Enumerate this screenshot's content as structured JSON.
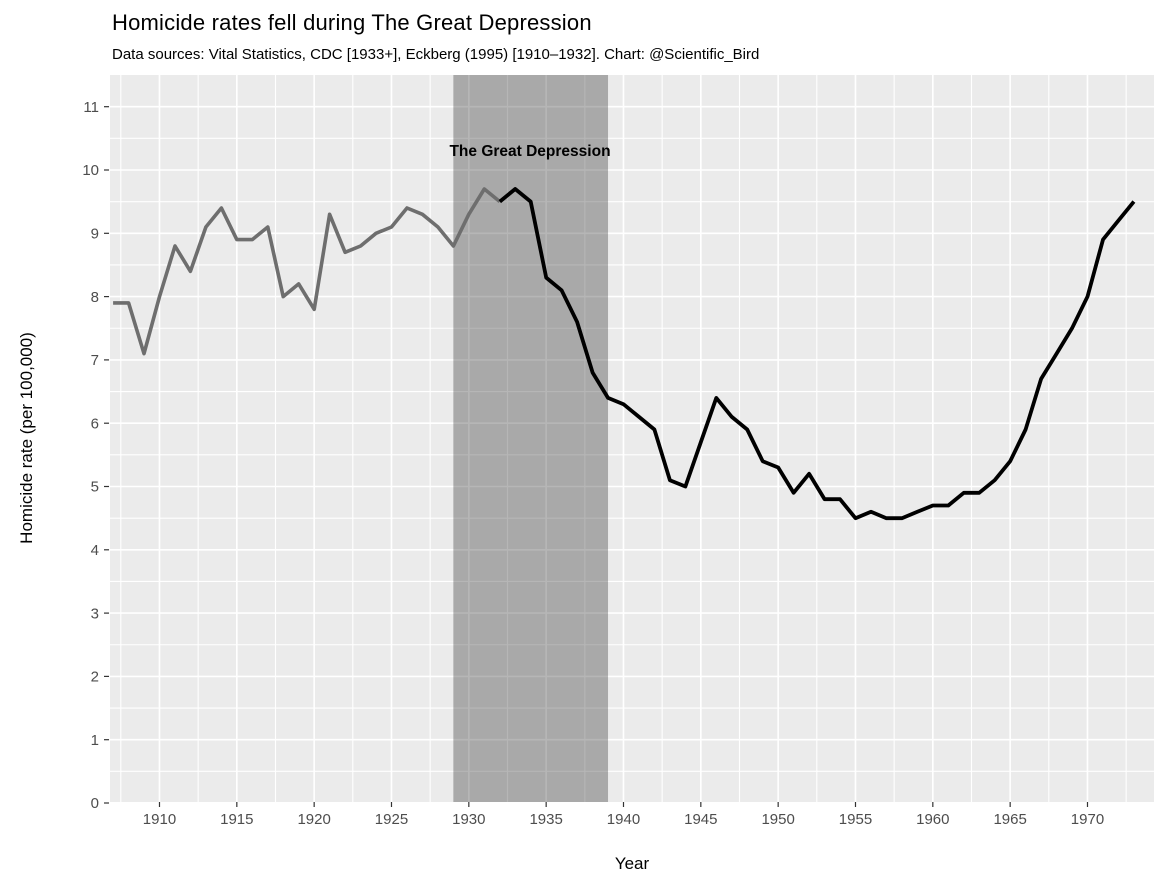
{
  "title": "Homicide rates fell during The Great Depression",
  "subtitle": "Data sources: Vital Statistics, CDC [1933+], Eckberg (1995) [1910–1932]. Chart: @Scientific_Bird",
  "colors": {
    "panel_background": "#ebebeb",
    "grid": "#ffffff",
    "shade_fill": "rgba(64,64,64,0.38)",
    "eckberg_line": "#6e6e6e",
    "cdc_line": "#000000",
    "tick_label": "#4d4d4d",
    "tick_mark": "#333333",
    "text": "#000000"
  },
  "chart_data": {
    "type": "line",
    "title": "Homicide rates fell during The Great Depression",
    "subtitle": "Data sources: Vital Statistics, CDC [1933+], Eckberg (1995) [1910–1932]. Chart: @Scientific_Bird",
    "xlabel": "Year",
    "ylabel": "Homicide rate (per 100,000)",
    "xlim": [
      1906.8,
      1974.3
    ],
    "ylim": [
      0,
      11.5
    ],
    "x_ticks": [
      1910,
      1915,
      1920,
      1925,
      1930,
      1935,
      1940,
      1945,
      1950,
      1955,
      1960,
      1965,
      1970
    ],
    "y_ticks": [
      0,
      1,
      2,
      3,
      4,
      5,
      6,
      7,
      8,
      9,
      10,
      11
    ],
    "x_minor_step": 2.5,
    "y_minor_step": 0.5,
    "grid": "white major and minor gridlines on gray panel",
    "legend_position": "none",
    "shaded_region": {
      "label": "The Great Depression",
      "x_start": 1929,
      "x_end": 1939
    },
    "series": [
      {
        "name": "Eckberg (1995) [1910–1932]",
        "color": "#6e6e6e",
        "linewidth": 3.6,
        "years": [
          1907,
          1908,
          1909,
          1910,
          1911,
          1912,
          1913,
          1914,
          1915,
          1916,
          1917,
          1918,
          1919,
          1920,
          1921,
          1922,
          1923,
          1924,
          1925,
          1926,
          1927,
          1928,
          1929,
          1930,
          1931,
          1932
        ],
        "values": [
          7.9,
          7.9,
          7.1,
          8.0,
          8.8,
          8.4,
          9.1,
          9.4,
          8.9,
          8.9,
          9.1,
          8.0,
          8.2,
          7.8,
          9.3,
          8.7,
          8.8,
          9.0,
          9.1,
          9.4,
          9.3,
          9.1,
          8.8,
          9.3,
          9.7,
          9.5
        ]
      },
      {
        "name": "Vital Statistics, CDC [1933+]",
        "color": "#000000",
        "linewidth": 3.8,
        "years": [
          1932,
          1933,
          1934,
          1935,
          1936,
          1937,
          1938,
          1939,
          1940,
          1941,
          1942,
          1943,
          1944,
          1945,
          1946,
          1947,
          1948,
          1949,
          1950,
          1951,
          1952,
          1953,
          1954,
          1955,
          1956,
          1957,
          1958,
          1959,
          1960,
          1961,
          1962,
          1963,
          1964,
          1965,
          1966,
          1967,
          1968,
          1969,
          1970,
          1971,
          1972,
          1973
        ],
        "values": [
          9.5,
          9.7,
          9.5,
          8.3,
          8.1,
          7.6,
          6.8,
          6.4,
          6.3,
          6.1,
          5.9,
          5.1,
          5.0,
          5.7,
          6.4,
          6.1,
          5.9,
          5.4,
          5.3,
          4.9,
          5.2,
          4.8,
          4.8,
          4.5,
          4.6,
          4.5,
          4.5,
          4.6,
          4.7,
          4.7,
          4.9,
          4.9,
          5.1,
          5.4,
          5.9,
          6.7,
          7.1,
          7.5,
          8.0,
          8.9,
          9.2,
          9.5
        ]
      }
    ]
  }
}
